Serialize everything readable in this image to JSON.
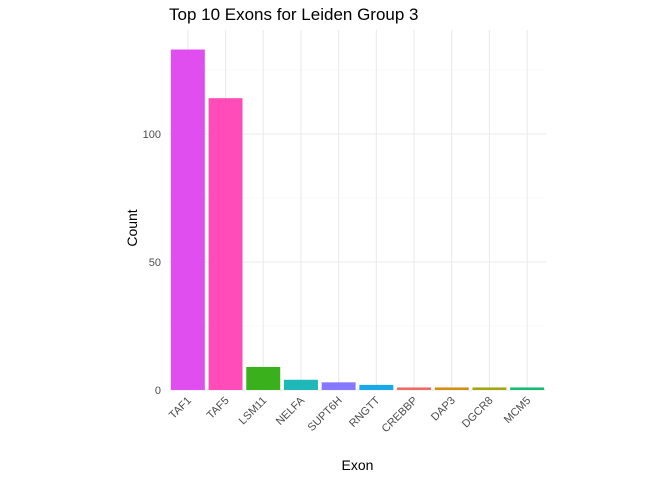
{
  "chart_data": {
    "type": "bar",
    "title": "Top 10 Exons for Leiden Group 3",
    "xlabel": "Exon",
    "ylabel": "Count",
    "categories": [
      "TAF1",
      "TAF5",
      "LSM11",
      "NELFA",
      "SUPT6H",
      "RNGTT",
      "CREBBP",
      "DAP3",
      "DGCR8",
      "MCM5"
    ],
    "values": [
      133,
      114,
      9,
      4,
      3,
      2,
      1,
      1,
      1,
      1
    ],
    "colors": [
      "#E04EF0",
      "#FF4CB8",
      "#39B01C",
      "#1EB8B8",
      "#8679FF",
      "#1BA8E8",
      "#F06A64",
      "#D38F14",
      "#A3A613",
      "#16BA72"
    ],
    "yticks": [
      0,
      50,
      100
    ],
    "ylim": [
      0,
      133
    ],
    "grid": true,
    "legend": "none"
  }
}
